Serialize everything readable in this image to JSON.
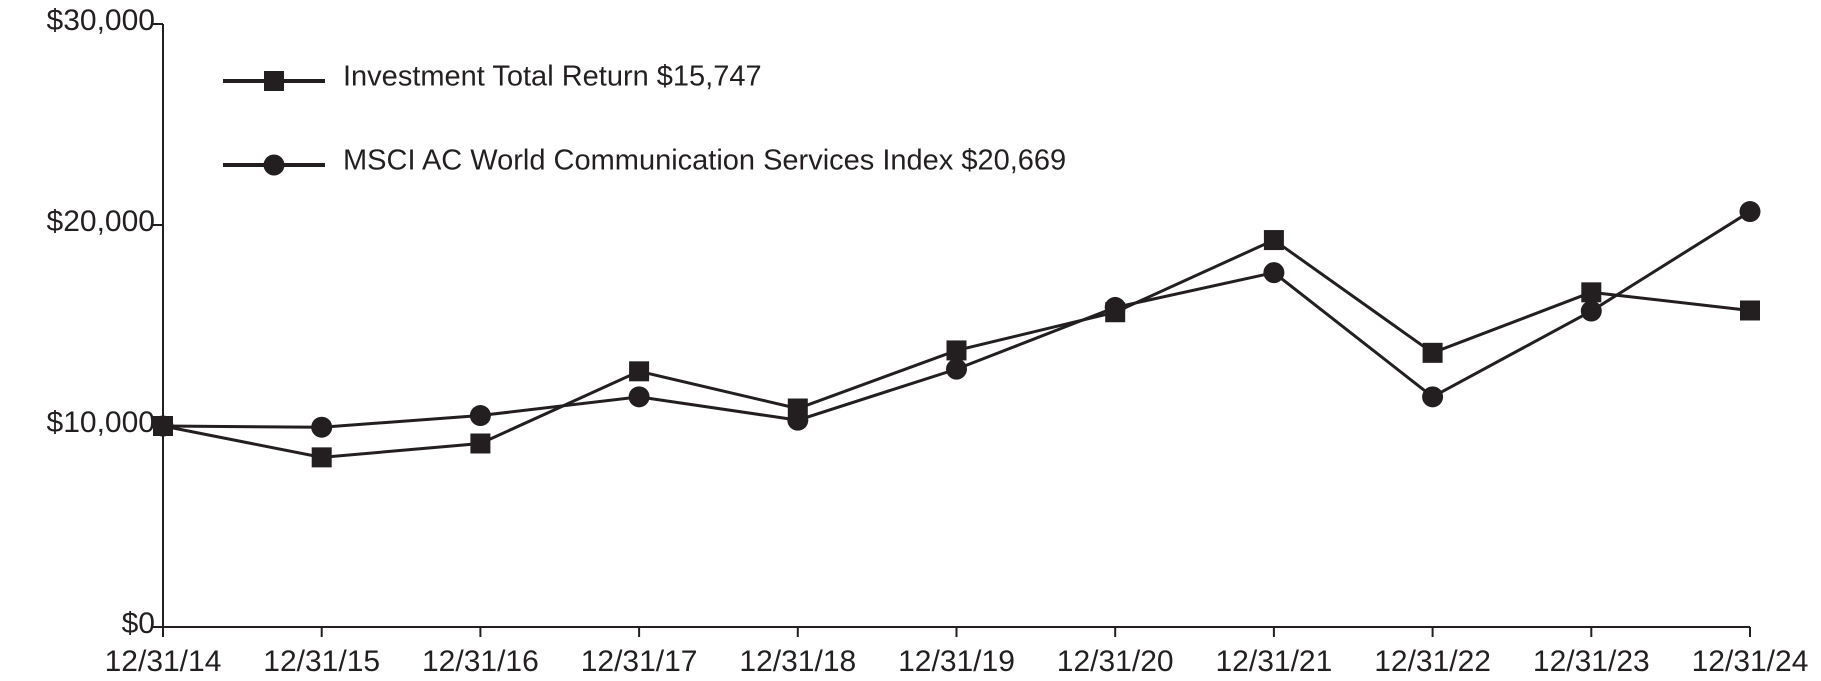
{
  "chart_data": {
    "type": "line",
    "categories": [
      "12/31/14",
      "12/31/15",
      "12/31/16",
      "12/31/17",
      "12/31/18",
      "12/31/19",
      "12/31/20",
      "12/31/21",
      "12/31/22",
      "12/31/23",
      "12/31/24"
    ],
    "series": [
      {
        "name": "Investment Total Return $15,747",
        "color": "#231f20",
        "marker": "square",
        "values": [
          10000,
          8440,
          9130,
          12720,
          10870,
          13760,
          15660,
          19250,
          13640,
          16650,
          15747
        ]
      },
      {
        "name": "MSCI AC World Communication Services Index $20,669",
        "color": "#231f20",
        "marker": "circle",
        "values": [
          10000,
          9940,
          10520,
          11450,
          10290,
          12830,
          15900,
          17630,
          11450,
          15720,
          20669
        ]
      }
    ],
    "ylim": [
      0,
      30000
    ],
    "yticks": [
      {
        "value": 0,
        "label": "$0"
      },
      {
        "value": 10000,
        "label": "$10,000"
      },
      {
        "value": 20000,
        "label": "$20,000"
      },
      {
        "value": 30000,
        "label": "$30,000"
      }
    ],
    "grid": false,
    "legend": "top-left"
  }
}
